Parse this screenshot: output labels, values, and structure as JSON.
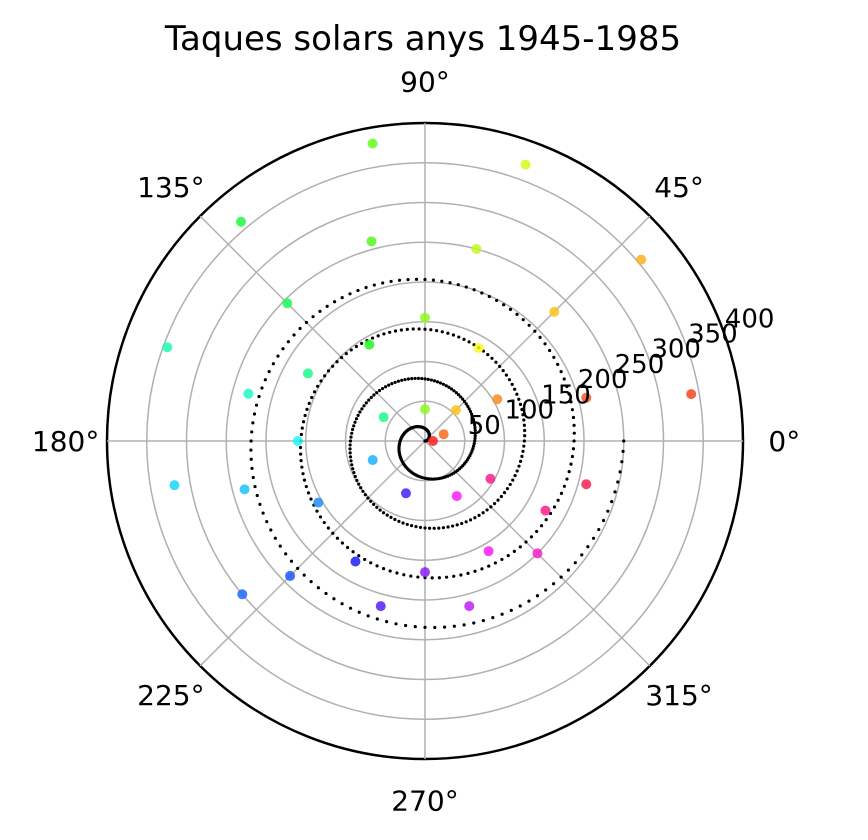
{
  "chart_data": {
    "type": "scatter",
    "projection": "polar",
    "title": "Taques solars anys 1945-1985",
    "xlabel": "",
    "ylabel": "",
    "grid": true,
    "legend": "none",
    "theta_unit": "degrees",
    "theta_ticks": [
      "0°",
      "45°",
      "90°",
      "135°",
      "180°",
      "225°",
      "270°",
      "315°"
    ],
    "r_ticks": [
      "50",
      "100",
      "150",
      "200",
      "250",
      "300",
      "350",
      "400"
    ],
    "r_tick_values": [
      50,
      100,
      150,
      200,
      250,
      300,
      350,
      400
    ],
    "r_range": [
      0,
      400
    ],
    "colors": {
      "grid": "#b0b0b0",
      "spine": "#000000",
      "reference_spiral": "#000000",
      "scatter_colormap": "hsv"
    },
    "series": [
      {
        "kind": "reference-spiral",
        "color": "#000000",
        "marker_size": "small",
        "theta_range_deg": [
          0,
          1440
        ],
        "r_range": [
          0,
          250
        ]
      },
      {
        "kind": "observations",
        "color_by": "theta",
        "marker_size": "medium",
        "points": [
          {
            "theta": 0,
            "r": 10
          },
          {
            "theta": 20,
            "r": 25
          },
          {
            "theta": 45,
            "r": 55
          },
          {
            "theta": 90,
            "r": 40
          },
          {
            "theta": 150,
            "r": 60
          },
          {
            "theta": 200,
            "r": 70
          },
          {
            "theta": 250,
            "r": 70
          },
          {
            "theta": 300,
            "r": 80
          },
          {
            "theta": 330,
            "r": 95
          },
          {
            "theta": 30,
            "r": 105
          },
          {
            "theta": 60,
            "r": 135
          },
          {
            "theta": 90,
            "r": 155
          },
          {
            "theta": 120,
            "r": 140
          },
          {
            "theta": 150,
            "r": 170
          },
          {
            "theta": 180,
            "r": 160
          },
          {
            "theta": 210,
            "r": 155
          },
          {
            "theta": 240,
            "r": 175
          },
          {
            "theta": 270,
            "r": 165
          },
          {
            "theta": 300,
            "r": 160
          },
          {
            "theta": 330,
            "r": 175
          },
          {
            "theta": 15,
            "r": 210
          },
          {
            "theta": 45,
            "r": 230
          },
          {
            "theta": 75,
            "r": 250
          },
          {
            "theta": 105,
            "r": 260
          },
          {
            "theta": 135,
            "r": 245
          },
          {
            "theta": 165,
            "r": 230
          },
          {
            "theta": 195,
            "r": 235
          },
          {
            "theta": 225,
            "r": 240
          },
          {
            "theta": 255,
            "r": 215
          },
          {
            "theta": 285,
            "r": 215
          },
          {
            "theta": 315,
            "r": 200
          },
          {
            "theta": 345,
            "r": 210
          },
          {
            "theta": 10,
            "r": 340
          },
          {
            "theta": 40,
            "r": 355
          },
          {
            "theta": 70,
            "r": 370
          },
          {
            "theta": 100,
            "r": 380
          },
          {
            "theta": 130,
            "r": 360
          },
          {
            "theta": 160,
            "r": 345
          },
          {
            "theta": 190,
            "r": 320
          },
          {
            "theta": 220,
            "r": 300
          }
        ]
      }
    ]
  }
}
